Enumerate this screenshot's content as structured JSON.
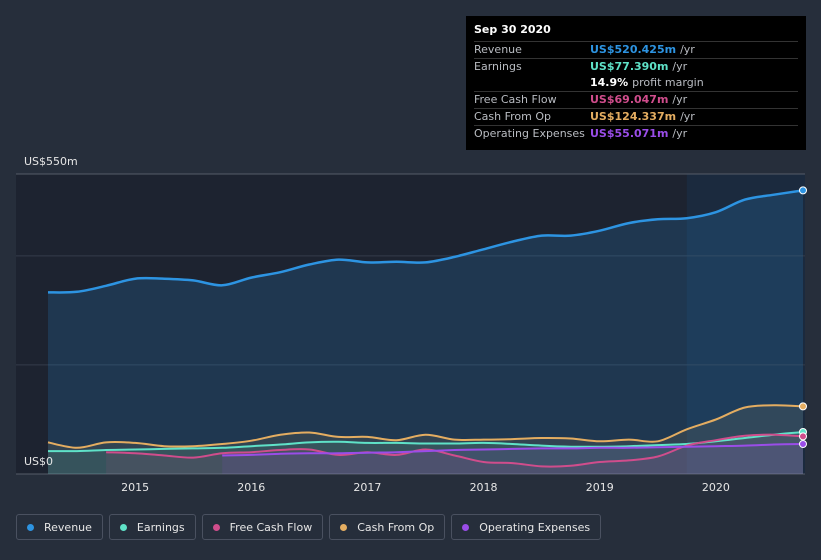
{
  "chart_data": {
    "type": "area",
    "ylim": [
      0,
      550
    ],
    "y_ticks": [
      {
        "value": 550,
        "label": "US$550m"
      },
      {
        "value": 0,
        "label": "US$0"
      }
    ],
    "x_ticks": [
      {
        "year": 2015,
        "label": "2015"
      },
      {
        "year": 2016,
        "label": "2016"
      },
      {
        "year": 2017,
        "label": "2017"
      },
      {
        "year": 2018,
        "label": "2018"
      },
      {
        "year": 2019,
        "label": "2019"
      },
      {
        "year": 2020,
        "label": "2020"
      }
    ],
    "highlight_from": 2019.75,
    "series": [
      {
        "name": "Revenue",
        "color": "#2d94e2",
        "x": [
          2014.25,
          2014.5,
          2014.75,
          2015.0,
          2015.25,
          2015.5,
          2015.75,
          2016.0,
          2016.25,
          2016.5,
          2016.75,
          2017.0,
          2017.25,
          2017.5,
          2017.75,
          2018.0,
          2018.25,
          2018.5,
          2018.75,
          2019.0,
          2019.25,
          2019.5,
          2019.75,
          2020.0,
          2020.25,
          2020.5,
          2020.75
        ],
        "y": [
          333,
          334,
          345,
          358,
          358,
          355,
          346,
          360,
          370,
          384,
          393,
          388,
          389,
          388,
          398,
          412,
          426,
          437,
          437,
          446,
          460,
          467,
          469,
          480,
          503,
          512,
          520
        ]
      },
      {
        "name": "Earnings",
        "color": "#5fe2c8",
        "x": [
          2014.25,
          2014.5,
          2014.75,
          2015.0,
          2015.25,
          2015.5,
          2015.75,
          2016.0,
          2016.25,
          2016.5,
          2016.75,
          2017.0,
          2017.25,
          2017.5,
          2017.75,
          2018.0,
          2018.25,
          2018.5,
          2018.75,
          2019.0,
          2019.25,
          2019.5,
          2019.75,
          2020.0,
          2020.25,
          2020.5,
          2020.75
        ],
        "y": [
          42,
          42,
          44,
          45,
          46,
          47,
          48,
          51,
          54,
          58,
          59,
          57,
          57,
          56,
          56,
          57,
          55,
          52,
          50,
          50,
          51,
          53,
          55,
          60,
          66,
          72,
          77
        ]
      },
      {
        "name": "Free Cash Flow",
        "color": "#d04d8c",
        "x": [
          2014.75,
          2015.0,
          2015.25,
          2015.5,
          2015.75,
          2016.0,
          2016.25,
          2016.5,
          2016.75,
          2017.0,
          2017.25,
          2017.5,
          2017.75,
          2018.0,
          2018.25,
          2018.5,
          2018.75,
          2019.0,
          2019.25,
          2019.5,
          2019.75,
          2020.0,
          2020.25,
          2020.5,
          2020.75
        ],
        "y": [
          40,
          38,
          34,
          30,
          38,
          40,
          44,
          45,
          35,
          40,
          35,
          45,
          34,
          22,
          20,
          14,
          15,
          22,
          25,
          32,
          52,
          62,
          70,
          72,
          69
        ]
      },
      {
        "name": "Cash From Op",
        "color": "#e4ad61",
        "x": [
          2014.25,
          2014.5,
          2014.75,
          2015.0,
          2015.25,
          2015.5,
          2015.75,
          2016.0,
          2016.25,
          2016.5,
          2016.75,
          2017.0,
          2017.25,
          2017.5,
          2017.75,
          2018.0,
          2018.25,
          2018.5,
          2018.75,
          2019.0,
          2019.25,
          2019.5,
          2019.75,
          2020.0,
          2020.25,
          2020.5,
          2020.75
        ],
        "y": [
          58,
          48,
          58,
          57,
          51,
          51,
          55,
          61,
          72,
          76,
          68,
          68,
          62,
          72,
          63,
          63,
          64,
          66,
          65,
          60,
          63,
          60,
          82,
          100,
          122,
          126,
          124
        ]
      },
      {
        "name": "Operating Expenses",
        "color": "#9a4de8",
        "x": [
          2015.75,
          2016.0,
          2016.25,
          2016.5,
          2016.75,
          2017.0,
          2017.25,
          2017.5,
          2017.75,
          2018.0,
          2018.25,
          2018.5,
          2018.75,
          2019.0,
          2019.25,
          2019.5,
          2019.75,
          2020.0,
          2020.25,
          2020.5,
          2020.75
        ],
        "y": [
          34,
          35,
          37,
          38,
          38,
          39,
          40,
          42,
          44,
          45,
          46,
          47,
          47,
          48,
          48,
          49,
          50,
          51,
          52,
          54,
          55
        ]
      }
    ]
  },
  "tooltip": {
    "date": "Sep 30 2020",
    "rows": [
      {
        "label": "Revenue",
        "value": "US$520.425m",
        "unit": "/yr",
        "color": "#2d94e2"
      },
      {
        "label": "Earnings",
        "value": "US$77.390m",
        "unit": "/yr",
        "color": "#5fe2c8"
      },
      {
        "label": "",
        "value": "14.9%",
        "unit": "profit margin",
        "color": "#ffffff"
      },
      {
        "label": "Free Cash Flow",
        "value": "US$69.047m",
        "unit": "/yr",
        "color": "#d04d8c"
      },
      {
        "label": "Cash From Op",
        "value": "US$124.337m",
        "unit": "/yr",
        "color": "#e4ad61"
      },
      {
        "label": "Operating Expenses",
        "value": "US$55.071m",
        "unit": "/yr",
        "color": "#9a4de8"
      }
    ]
  },
  "legend": [
    {
      "label": "Revenue",
      "color": "#2d94e2"
    },
    {
      "label": "Earnings",
      "color": "#5fe2c8"
    },
    {
      "label": "Free Cash Flow",
      "color": "#d04d8c"
    },
    {
      "label": "Cash From Op",
      "color": "#e4ad61"
    },
    {
      "label": "Operating Expenses",
      "color": "#9a4de8"
    }
  ]
}
